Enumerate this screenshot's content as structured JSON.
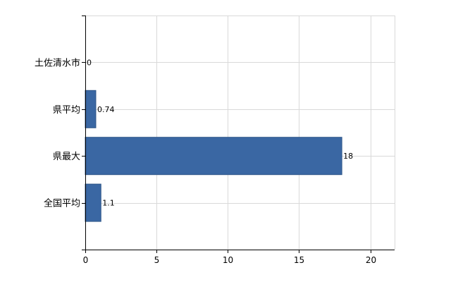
{
  "chart_data": {
    "type": "bar",
    "orientation": "horizontal",
    "categories": [
      "土佐清水市",
      "県平均",
      "県最大",
      "全国平均"
    ],
    "values": [
      0,
      0.74,
      18,
      1.1
    ],
    "data_labels": [
      "0",
      "0.74",
      "18",
      "1.1"
    ],
    "x_ticks": [
      0,
      5,
      10,
      15,
      20
    ],
    "xlim": [
      0,
      21.7
    ],
    "grid": true,
    "bar_color": "#3a67a3"
  }
}
